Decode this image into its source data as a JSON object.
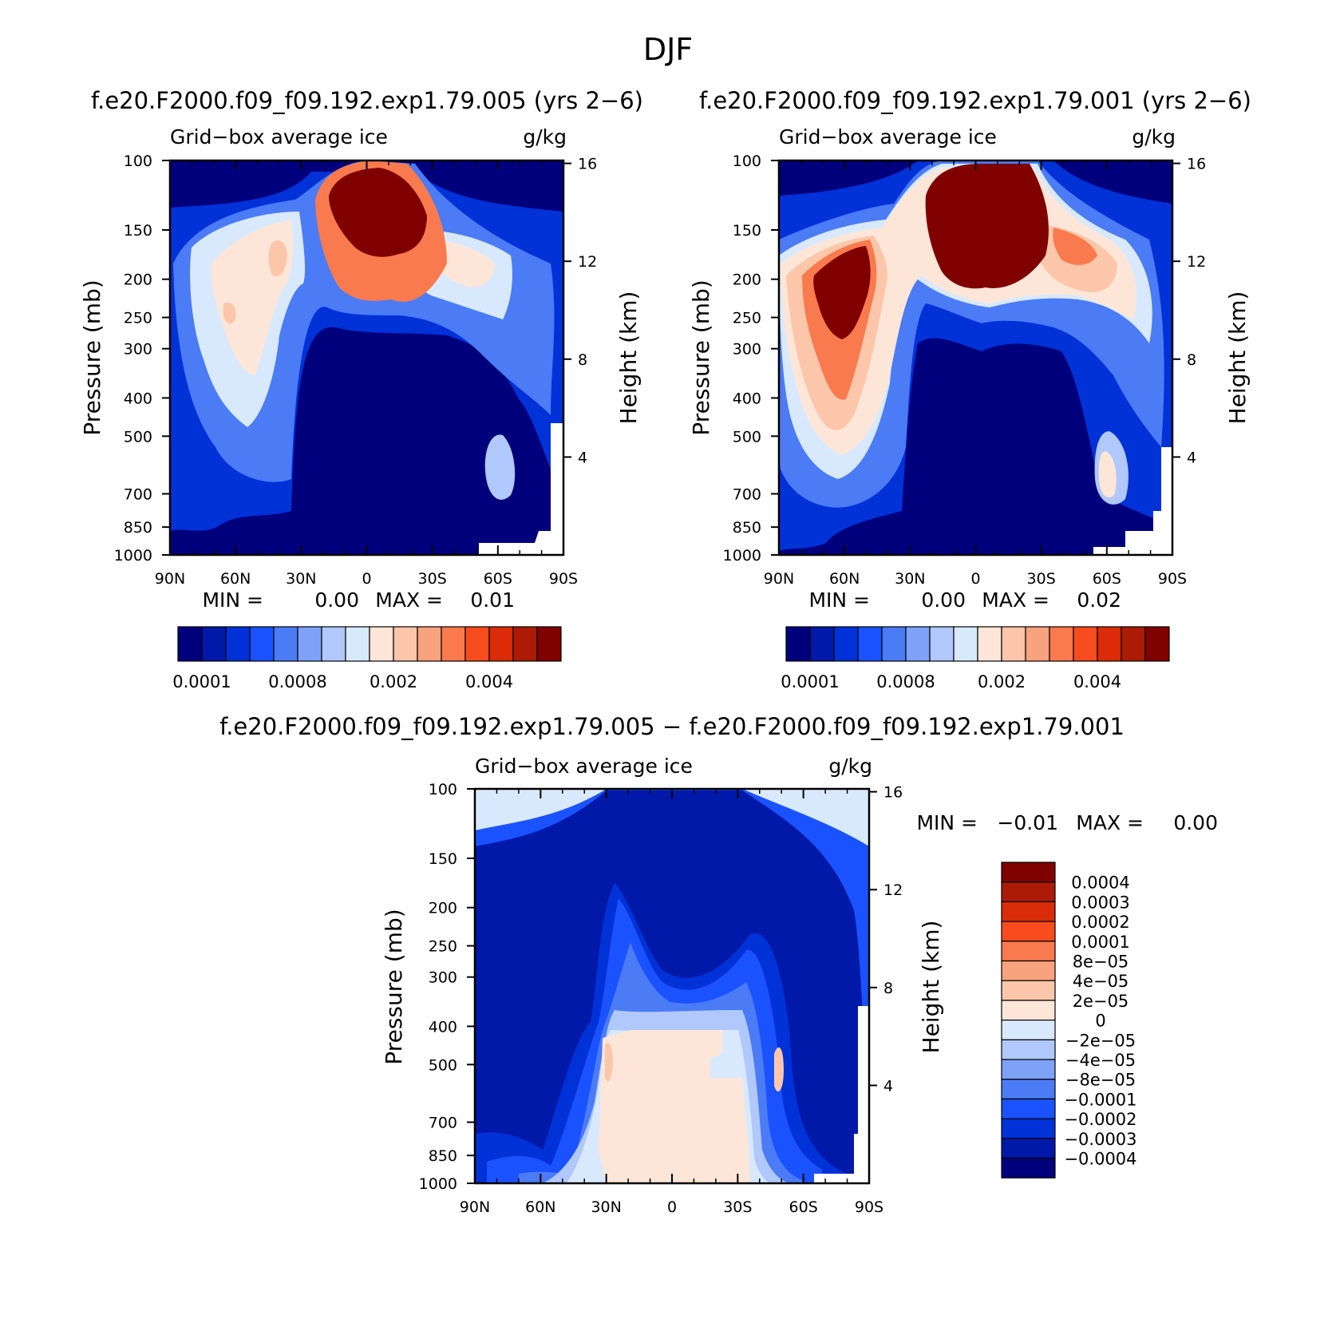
{
  "figure": {
    "season": "DJF",
    "panel_colors": [
      "#00007d",
      "#0019a8",
      "#0032d8",
      "#1b52ff",
      "#4b7bf5",
      "#7ea2f8",
      "#b0c8fb",
      "#d9e9fd",
      "#fde6d8",
      "#fcc6aa",
      "#f9a27e",
      "#f87a4e",
      "#f84c1e",
      "#da2c08",
      "#ab1b06",
      "#800000"
    ],
    "diff_colors": [
      "#00007d",
      "#0019a8",
      "#0032d8",
      "#1b52ff",
      "#4b7bf5",
      "#7ea2f8",
      "#b0c8fb",
      "#d9e9fd",
      "#fde6d8",
      "#fcc6aa",
      "#f9a27e",
      "#f87a4e",
      "#f84c1e",
      "#da2c08",
      "#ab1b06",
      "#800000"
    ]
  },
  "chart_data": [
    {
      "type": "heatmap",
      "title": "f.e20.F2000.f09_f09.192.exp1.79.005 (yrs 2−6)",
      "left_label": "Grid−box average ice",
      "right_label": "g/kg",
      "ylabel": "Pressure (mb)",
      "y2label": "Height (km)",
      "x_ticks": [
        "90N",
        "60N",
        "30N",
        "0",
        "30S",
        "60S",
        "90S"
      ],
      "x_values": [
        -90,
        -60,
        -30,
        0,
        30,
        60,
        90
      ],
      "y_ticks": [
        "100",
        "150",
        "200",
        "250",
        "300",
        "400",
        "500",
        "700",
        "850",
        "1000"
      ],
      "y_values": [
        100,
        150,
        200,
        250,
        300,
        400,
        500,
        700,
        850,
        1000
      ],
      "y2_ticks": [
        "16",
        "12",
        "8",
        "4"
      ],
      "y2_values": [
        16,
        12,
        8,
        4
      ],
      "min_label": "MIN =",
      "min_value": "0.00",
      "max_label": "MAX =",
      "max_value": "0.01",
      "colorbar_labels": [
        "0.0001",
        "0.0008",
        "0.002",
        "0.004"
      ]
    },
    {
      "type": "heatmap",
      "title": "f.e20.F2000.f09_f09.192.exp1.79.001 (yrs 2−6)",
      "left_label": "Grid−box average ice",
      "right_label": "g/kg",
      "ylabel": "Pressure (mb)",
      "y2label": "Height (km)",
      "x_ticks": [
        "90N",
        "60N",
        "30N",
        "0",
        "30S",
        "60S",
        "90S"
      ],
      "x_values": [
        -90,
        -60,
        -30,
        0,
        30,
        60,
        90
      ],
      "y_ticks": [
        "100",
        "150",
        "200",
        "250",
        "300",
        "400",
        "500",
        "700",
        "850",
        "1000"
      ],
      "y_values": [
        100,
        150,
        200,
        250,
        300,
        400,
        500,
        700,
        850,
        1000
      ],
      "y2_ticks": [
        "16",
        "12",
        "8",
        "4"
      ],
      "y2_values": [
        16,
        12,
        8,
        4
      ],
      "min_label": "MIN =",
      "min_value": "0.00",
      "max_label": "MAX =",
      "max_value": "0.02",
      "colorbar_labels": [
        "0.0001",
        "0.0008",
        "0.002",
        "0.004"
      ]
    },
    {
      "type": "heatmap",
      "title": "f.e20.F2000.f09_f09.192.exp1.79.005 − f.e20.F2000.f09_f09.192.exp1.79.001",
      "left_label": "Grid−box average ice",
      "right_label": "g/kg",
      "ylabel": "Pressure (mb)",
      "y2label": "Height (km)",
      "x_ticks": [
        "90N",
        "60N",
        "30N",
        "0",
        "30S",
        "60S",
        "90S"
      ],
      "x_values": [
        -90,
        -60,
        -30,
        0,
        30,
        60,
        90
      ],
      "y_ticks": [
        "100",
        "150",
        "200",
        "250",
        "300",
        "400",
        "500",
        "700",
        "850",
        "1000"
      ],
      "y_values": [
        100,
        150,
        200,
        250,
        300,
        400,
        500,
        700,
        850,
        1000
      ],
      "y2_ticks": [
        "16",
        "12",
        "8",
        "4"
      ],
      "y2_values": [
        16,
        12,
        8,
        4
      ],
      "min_label": "MIN =",
      "min_value": "−0.01",
      "max_label": "MAX =",
      "max_value": "0.00",
      "colorbar_labels": [
        "0.0004",
        "0.0003",
        "0.0002",
        "0.0001",
        "8e−05",
        "4e−05",
        "2e−05",
        "0",
        "−2e−05",
        "−4e−05",
        "−8e−05",
        "−0.0001",
        "−0.0002",
        "−0.0003",
        "−0.0004"
      ]
    }
  ]
}
